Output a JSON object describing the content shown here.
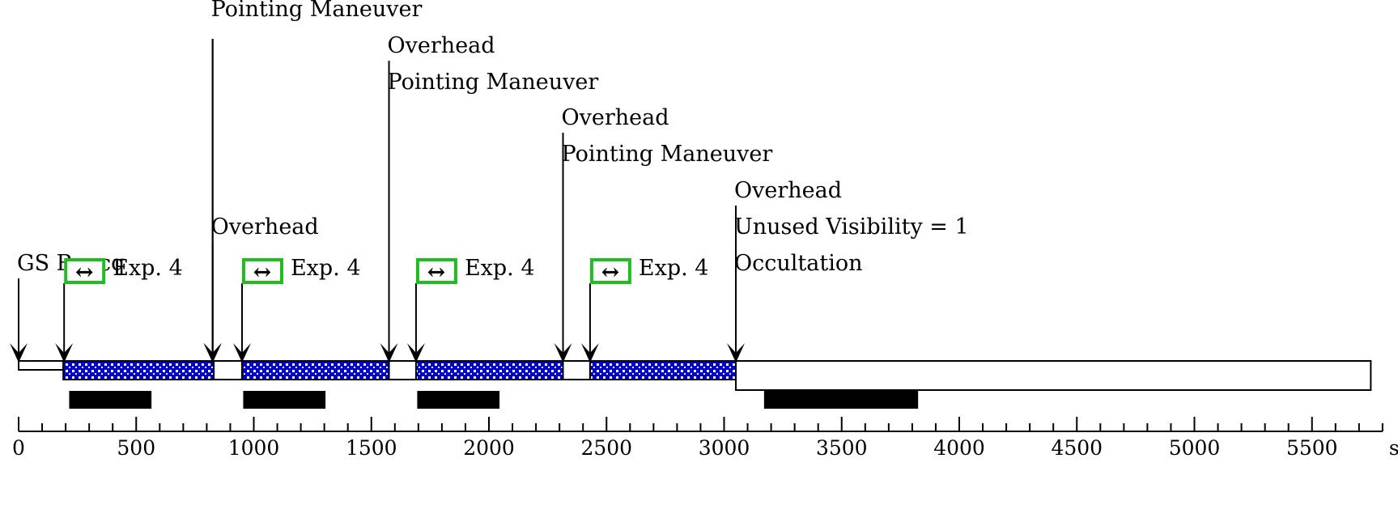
{
  "axis": {
    "ticks": [
      0,
      500,
      1000,
      1500,
      2000,
      2500,
      3000,
      3500,
      4000,
      4500,
      5000,
      5500
    ],
    "minor_step": 100,
    "max": 5800,
    "unit": "sec"
  },
  "events": [
    {
      "t": 0,
      "top_row": 7,
      "labels": [
        "GS Reacq"
      ]
    },
    {
      "t": 825,
      "top_row": 0,
      "labels": []
    },
    {
      "t": 825,
      "top_row": 0,
      "labels": [
        "Pointing Maneuver"
      ]
    },
    {
      "t": 825,
      "top_row": 6,
      "labels": [
        "Overhead"
      ]
    },
    {
      "t": 1575,
      "top_row": 1,
      "labels": [
        "Overhead",
        "Pointing Maneuver"
      ]
    },
    {
      "t": 2315,
      "top_row": 3,
      "labels": [
        "Overhead",
        "Pointing Maneuver"
      ]
    },
    {
      "t": 3050,
      "top_row": 5,
      "labels": [
        "Overhead",
        "Unused Visibility = 1",
        "Occultation"
      ]
    }
  ],
  "exposures": [
    {
      "start": 190,
      "end": 830,
      "label": "Exp. 4",
      "symbol": "↔"
    },
    {
      "start": 950,
      "end": 1575,
      "label": "Exp. 4",
      "symbol": "↔"
    },
    {
      "start": 1690,
      "end": 2315,
      "label": "Exp. 4",
      "symbol": "↔"
    },
    {
      "start": 2430,
      "end": 3050,
      "label": "Exp. 4",
      "symbol": "↔"
    }
  ],
  "segments": [
    {
      "start": 0,
      "end": 190,
      "kind": "overhead"
    },
    {
      "start": 825,
      "end": 950,
      "kind": "overhead"
    },
    {
      "start": 1575,
      "end": 1690,
      "kind": "overhead"
    },
    {
      "start": 2315,
      "end": 2430,
      "kind": "overhead"
    },
    {
      "start": 3050,
      "end": 3150,
      "kind": "overhead"
    },
    {
      "start": 3050,
      "end": 5750,
      "kind": "occultation"
    }
  ],
  "black_bars": [
    {
      "start": 215,
      "end": 565
    },
    {
      "start": 955,
      "end": 1305
    },
    {
      "start": 1695,
      "end": 2045
    },
    {
      "start": 3170,
      "end": 3825
    }
  ],
  "colors": {
    "exposure_fill": "#0000cc",
    "exposure_dot": "#ffffff",
    "exp_box": "#22bb22",
    "line": "#000000"
  }
}
